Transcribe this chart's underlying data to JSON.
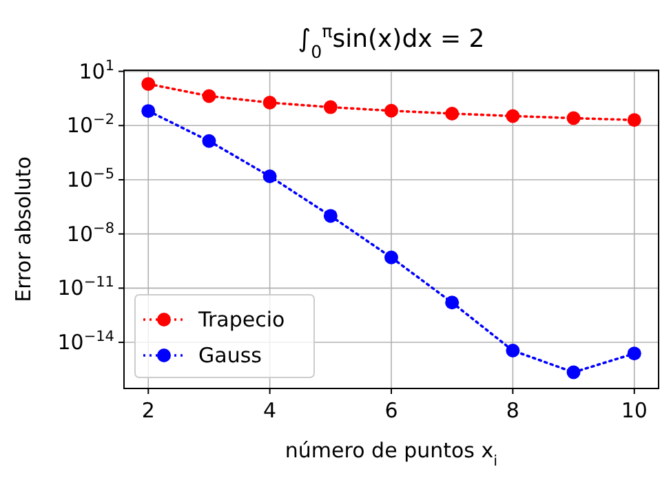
{
  "chart_data": {
    "type": "line",
    "title": "∫$_{0}$$^{π}$sin(x)dx = 2",
    "xlabel": "número de puntos x$_{i}$",
    "ylabel": "Error absoluto",
    "x": [
      2,
      3,
      4,
      5,
      6,
      7,
      8,
      9,
      10
    ],
    "series": [
      {
        "name": "Trapecio",
        "color": "#ff0000",
        "values": [
          2,
          0.429,
          0.186,
          0.104,
          0.066,
          0.0458,
          0.0336,
          0.0257,
          0.0203
        ]
      },
      {
        "name": "Gauss",
        "color": "#0000ff",
        "values": [
          0.064,
          0.00139,
          1.55e-05,
          1e-07,
          5e-10,
          1.6e-12,
          3.5e-15,
          2.2e-16,
          2.4e-15
        ]
      }
    ],
    "xlim": [
      1.6,
      10.4
    ],
    "xticks": [
      2,
      4,
      6,
      8,
      10
    ],
    "ylim": [
      2.8e-17,
      11.5
    ],
    "yticks": [
      {
        "value": 10,
        "label": "10$^{1}$"
      },
      {
        "value": 0.01,
        "label": "10$^{−2}$"
      },
      {
        "value": 1e-05,
        "label": "10$^{−5}$"
      },
      {
        "value": 1e-08,
        "label": "10$^{−8}$"
      },
      {
        "value": 1e-11,
        "label": "10$^{−11}$"
      },
      {
        "value": 1e-14,
        "label": "10$^{−14}$"
      }
    ],
    "log": "y",
    "grid": true,
    "legend": "lower left",
    "marker": "circle",
    "line_style": "dotted"
  }
}
